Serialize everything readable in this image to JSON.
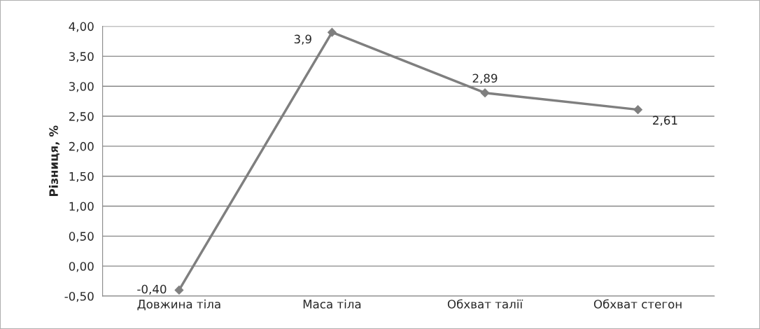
{
  "chart_data": {
    "type": "line",
    "ylabel": "Різниця, %",
    "categories": [
      "Довжина тіла",
      "Маса тіла",
      "Обхват талії",
      "Обхват стегон"
    ],
    "series": [
      {
        "color": "#7f7f7f",
        "values": [
          -0.4,
          3.9,
          2.89,
          2.61
        ],
        "value_labels": [
          "-0,40",
          "3,9",
          "2,89",
          "2,61"
        ]
      }
    ],
    "ylim": [
      -0.5,
      4.0
    ],
    "yticks": [
      {
        "value": -0.5,
        "label": "-0,50"
      },
      {
        "value": 0,
        "label": "0,00"
      },
      {
        "value": 0.5,
        "label": "0,50"
      },
      {
        "value": 1.0,
        "label": "1,00"
      },
      {
        "value": 1.5,
        "label": "1,50"
      },
      {
        "value": 2.0,
        "label": "2,00"
      },
      {
        "value": 2.5,
        "label": "2,50"
      },
      {
        "value": 3.0,
        "label": "3,00"
      },
      {
        "value": 3.5,
        "label": "3,50"
      },
      {
        "value": 4.0,
        "label": "4,00"
      }
    ],
    "grid": "y",
    "marker": "diamond",
    "line_style": "solid"
  }
}
